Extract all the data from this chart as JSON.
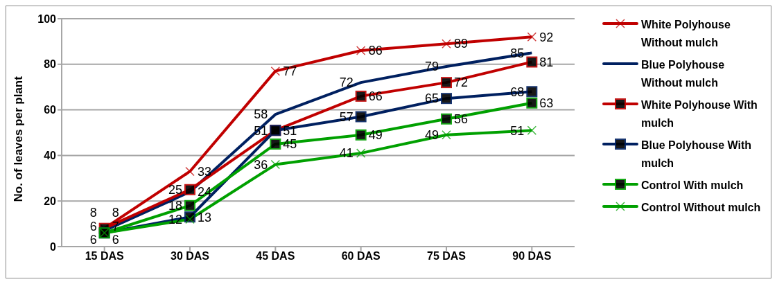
{
  "chart_data": {
    "type": "line",
    "ylabel": "No. of leaves per plant",
    "categories": [
      "15 DAS",
      "30 DAS",
      "45 DAS",
      "60 DAS",
      "75 DAS",
      "90 DAS"
    ],
    "series": [
      {
        "name": "White Polyhouse Without mulch",
        "color": "#c00000",
        "marker": "cross",
        "values": [
          8,
          33,
          77,
          86,
          89,
          92
        ]
      },
      {
        "name": "Blue Polyhouse Without mulch",
        "color": "#002060",
        "values": [
          7,
          24,
          58,
          72,
          79,
          85
        ]
      },
      {
        "name": "White Polyhouse With mulch",
        "color": "#c00000",
        "marker": "square",
        "values": [
          8,
          25,
          51,
          66,
          72,
          81
        ]
      },
      {
        "name": "Blue Polyhouse With mulch",
        "color": "#002060",
        "marker": "square",
        "values": [
          6,
          13,
          51,
          57,
          65,
          68
        ]
      },
      {
        "name": "Control With mulch",
        "color": "#00a000",
        "marker": "square",
        "values": [
          6,
          18,
          45,
          49,
          56,
          63
        ]
      },
      {
        "name": "Control Without mulch",
        "color": "#00a000",
        "marker": "cross",
        "values": [
          6,
          12,
          36,
          41,
          49,
          51
        ]
      }
    ],
    "ylim": [
      0,
      100
    ],
    "yticks": [
      0,
      20,
      40,
      60,
      80,
      100
    ],
    "grid": "y",
    "legend": "right",
    "data_labels": true
  }
}
